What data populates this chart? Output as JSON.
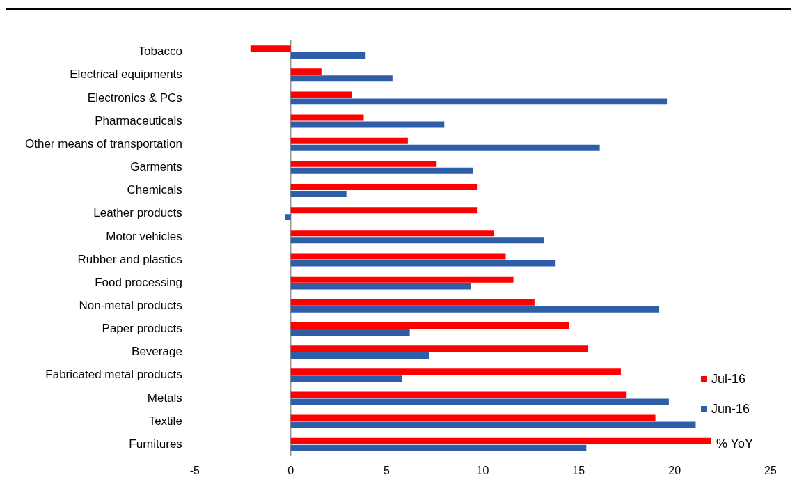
{
  "chart_data": {
    "type": "bar",
    "orientation": "horizontal",
    "categories": [
      "Tobacco",
      "Electrical equipments",
      "Electronics & PCs",
      "Pharmaceuticals",
      "Other means of transportation",
      "Garments",
      "Chemicals",
      "Leather products",
      "Motor vehicles",
      "Rubber and plastics",
      "Food processing",
      "Non-metal products",
      "Paper products",
      "Beverage",
      "Fabricated metal products",
      "Metals",
      "Textile",
      "Furnitures"
    ],
    "series": [
      {
        "name": "Jul-16",
        "color": "#ff0000",
        "values": [
          -2.1,
          1.6,
          3.2,
          3.8,
          6.1,
          7.6,
          9.7,
          9.7,
          10.6,
          11.2,
          11.6,
          12.7,
          14.5,
          15.5,
          17.2,
          17.5,
          19.0,
          21.9
        ]
      },
      {
        "name": "Jun-16",
        "color": "#2e5ea8",
        "values": [
          3.9,
          5.3,
          19.6,
          8.0,
          16.1,
          9.5,
          2.9,
          -0.3,
          13.2,
          13.8,
          9.4,
          19.2,
          6.2,
          7.2,
          5.8,
          19.7,
          21.1,
          15.4
        ]
      }
    ],
    "xlim": [
      -5,
      25
    ],
    "xticks": [
      -5,
      0,
      5,
      10,
      15,
      20,
      25
    ],
    "annotations": [
      "% YoY"
    ],
    "legend": "bottom right"
  }
}
